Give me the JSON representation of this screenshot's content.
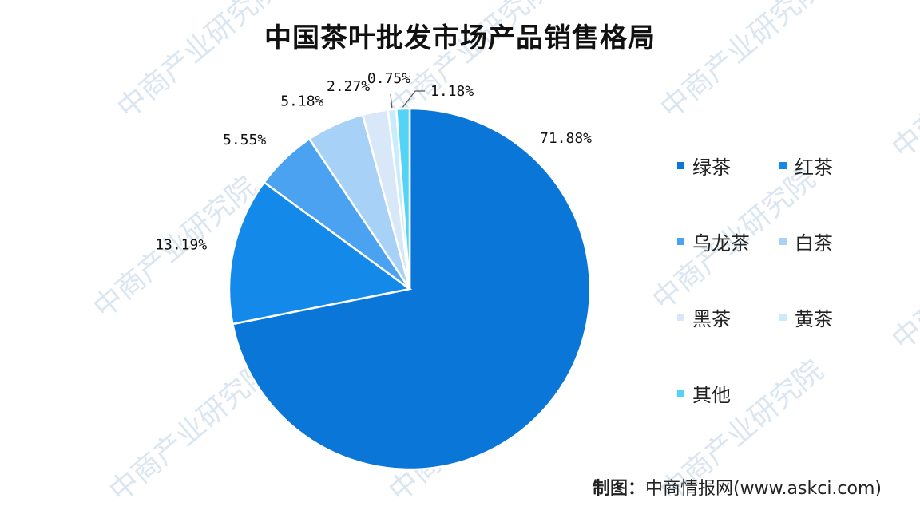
{
  "colors": {
    "绿茶": "#0a76d8",
    "红茶": "#1389ea",
    "乌龙茶": "#4aa2f0",
    "白茶": "#a8d1f7",
    "黑茶": "#d8e8f8",
    "黄茶": "#c8ecfb",
    "其他": "#53d3f5",
    "text": "#111111",
    "watermark": "#dbe6f0"
  },
  "watermark": "中商产业研究院",
  "source": {
    "label": "制图：",
    "text": "中商情报网(www.askci.com)"
  },
  "chart_data": {
    "type": "pie",
    "title": "中国茶叶批发市场产品销售格局",
    "legend_position": "right",
    "categories": [
      "绿茶",
      "红茶",
      "乌龙茶",
      "白茶",
      "黑茶",
      "黄茶",
      "其他"
    ],
    "values": [
      71.88,
      13.19,
      5.55,
      5.18,
      2.27,
      0.75,
      1.18
    ],
    "labels": [
      "71.88%",
      "13.19%",
      "5.55%",
      "5.18%",
      "2.27%",
      "0.75%",
      "1.18%"
    ]
  }
}
